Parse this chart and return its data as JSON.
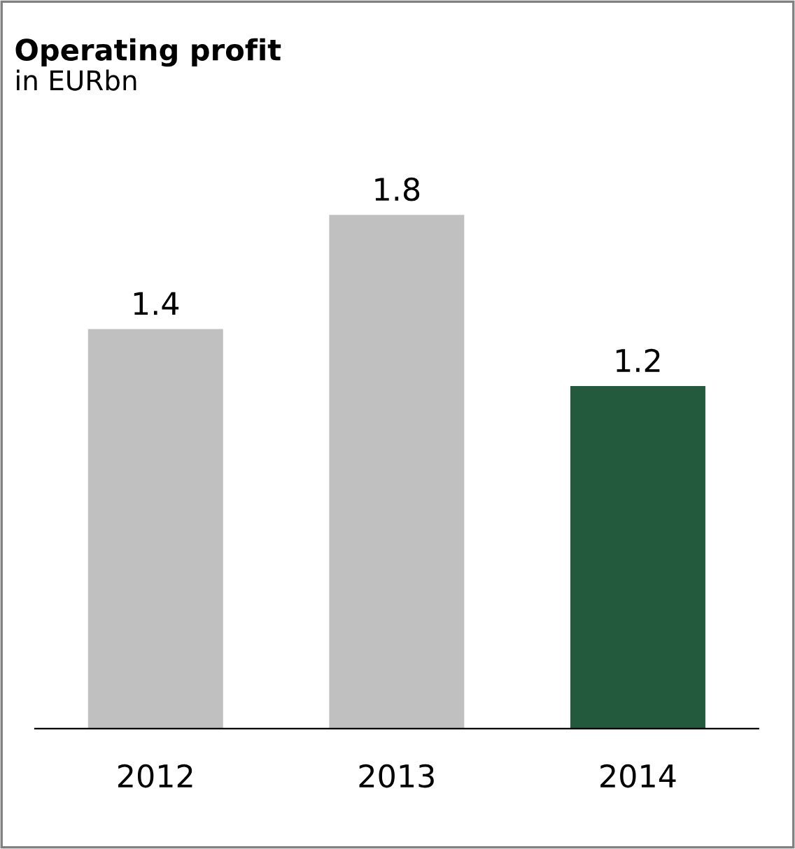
{
  "chart_data": {
    "type": "bar",
    "title": "Operating profit",
    "subtitle": "in EURbn",
    "categories": [
      "2012",
      "2013",
      "2014"
    ],
    "values": [
      1.4,
      1.8,
      1.2
    ],
    "colors": [
      "#c0c0c0",
      "#c0c0c0",
      "#235a3e"
    ],
    "data_labels": true,
    "tick_labels": "x",
    "grid": false,
    "legend": false
  }
}
